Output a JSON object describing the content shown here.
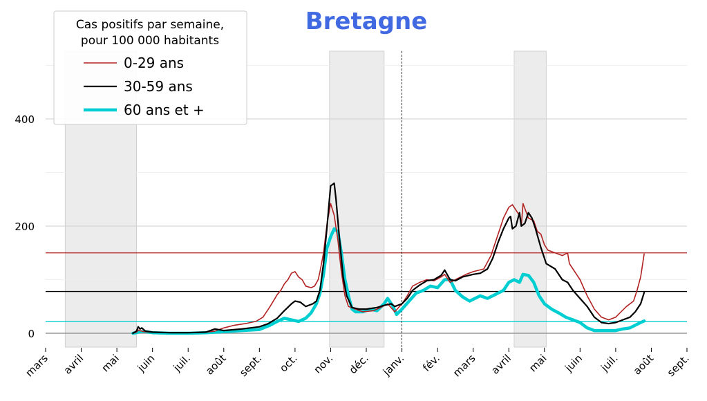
{
  "chart_data": {
    "type": "line",
    "title": "Bretagne",
    "title_color": "#4169E1",
    "legend": {
      "title_lines": [
        "Cas positifs par semaine,",
        "pour 100 000 habitants"
      ],
      "placement": "top-left"
    },
    "x_month_labels": [
      "mars",
      "avril",
      "mai",
      "juin",
      "juil.",
      "août",
      "sept.",
      "oct.",
      "nov.",
      "déc.",
      "janv.",
      "fév.",
      "mars",
      "avril",
      "mai",
      "juin",
      "juil.",
      "août",
      "sept."
    ],
    "x_range_months": [
      0,
      18
    ],
    "y_ticks": [
      0,
      200,
      400
    ],
    "ylim": [
      -25,
      530
    ],
    "grid": "horizontal",
    "year_boundary_month": 10,
    "lockdowns": [
      {
        "start": 0.55,
        "end": 2.55
      },
      {
        "start": 7.97,
        "end": 9.5
      },
      {
        "start": 13.15,
        "end": 14.05
      }
    ],
    "series": [
      {
        "name": "0-29 ans",
        "color": "#B22222",
        "reference_level": 150,
        "points": [
          [
            2.45,
            0
          ],
          [
            2.55,
            2
          ],
          [
            2.6,
            6
          ],
          [
            2.75,
            3
          ],
          [
            3.0,
            2
          ],
          [
            3.5,
            1
          ],
          [
            4.0,
            1
          ],
          [
            4.5,
            2
          ],
          [
            4.75,
            4
          ],
          [
            5.0,
            10
          ],
          [
            5.3,
            15
          ],
          [
            5.6,
            18
          ],
          [
            5.9,
            22
          ],
          [
            6.1,
            30
          ],
          [
            6.3,
            50
          ],
          [
            6.5,
            72
          ],
          [
            6.6,
            80
          ],
          [
            6.7,
            92
          ],
          [
            6.8,
            100
          ],
          [
            6.9,
            112
          ],
          [
            7.0,
            115
          ],
          [
            7.1,
            105
          ],
          [
            7.2,
            100
          ],
          [
            7.3,
            88
          ],
          [
            7.45,
            85
          ],
          [
            7.55,
            88
          ],
          [
            7.65,
            100
          ],
          [
            7.7,
            115
          ],
          [
            7.8,
            150
          ],
          [
            7.9,
            205
          ],
          [
            8.0,
            242
          ],
          [
            8.1,
            220
          ],
          [
            8.2,
            175
          ],
          [
            8.3,
            115
          ],
          [
            8.4,
            70
          ],
          [
            8.5,
            50
          ],
          [
            8.7,
            45
          ],
          [
            8.9,
            40
          ],
          [
            9.2,
            42
          ],
          [
            9.4,
            48
          ],
          [
            9.6,
            55
          ],
          [
            9.8,
            40
          ],
          [
            10.0,
            55
          ],
          [
            10.15,
            70
          ],
          [
            10.3,
            88
          ],
          [
            10.5,
            95
          ],
          [
            10.7,
            100
          ],
          [
            10.9,
            98
          ],
          [
            11.1,
            105
          ],
          [
            11.2,
            110
          ],
          [
            11.35,
            95
          ],
          [
            11.5,
            100
          ],
          [
            11.8,
            110
          ],
          [
            12.0,
            115
          ],
          [
            12.3,
            120
          ],
          [
            12.5,
            145
          ],
          [
            12.7,
            185
          ],
          [
            12.85,
            215
          ],
          [
            13.0,
            235
          ],
          [
            13.1,
            240
          ],
          [
            13.2,
            230
          ],
          [
            13.3,
            220
          ],
          [
            13.35,
            200
          ],
          [
            13.4,
            242
          ],
          [
            13.55,
            215
          ],
          [
            13.7,
            210
          ],
          [
            13.8,
            190
          ],
          [
            13.9,
            185
          ],
          [
            14.0,
            165
          ],
          [
            14.1,
            155
          ],
          [
            14.3,
            150
          ],
          [
            14.5,
            145
          ],
          [
            14.65,
            150
          ],
          [
            14.7,
            130
          ],
          [
            14.8,
            120
          ],
          [
            14.9,
            110
          ],
          [
            15.0,
            100
          ],
          [
            15.2,
            70
          ],
          [
            15.4,
            45
          ],
          [
            15.6,
            30
          ],
          [
            15.8,
            25
          ],
          [
            16.0,
            30
          ],
          [
            16.15,
            40
          ],
          [
            16.3,
            50
          ],
          [
            16.5,
            60
          ],
          [
            16.6,
            80
          ],
          [
            16.7,
            105
          ],
          [
            16.8,
            148
          ]
        ]
      },
      {
        "name": "30-59 ans",
        "color": "#000000",
        "reference_level": 78,
        "points": [
          [
            2.45,
            0
          ],
          [
            2.55,
            4
          ],
          [
            2.6,
            12
          ],
          [
            2.65,
            8
          ],
          [
            2.7,
            10
          ],
          [
            2.8,
            4
          ],
          [
            3.0,
            2
          ],
          [
            3.5,
            1
          ],
          [
            4.0,
            1
          ],
          [
            4.5,
            2
          ],
          [
            4.75,
            8
          ],
          [
            5.0,
            5
          ],
          [
            5.5,
            8
          ],
          [
            6.0,
            12
          ],
          [
            6.25,
            18
          ],
          [
            6.5,
            28
          ],
          [
            6.7,
            42
          ],
          [
            6.9,
            55
          ],
          [
            7.0,
            60
          ],
          [
            7.15,
            58
          ],
          [
            7.3,
            50
          ],
          [
            7.5,
            55
          ],
          [
            7.6,
            60
          ],
          [
            7.7,
            80
          ],
          [
            7.8,
            130
          ],
          [
            7.9,
            200
          ],
          [
            8.0,
            275
          ],
          [
            8.1,
            280
          ],
          [
            8.15,
            250
          ],
          [
            8.25,
            175
          ],
          [
            8.35,
            105
          ],
          [
            8.45,
            70
          ],
          [
            8.6,
            48
          ],
          [
            8.8,
            45
          ],
          [
            9.0,
            45
          ],
          [
            9.3,
            48
          ],
          [
            9.5,
            52
          ],
          [
            9.7,
            55
          ],
          [
            9.8,
            50
          ],
          [
            10.0,
            55
          ],
          [
            10.15,
            65
          ],
          [
            10.3,
            80
          ],
          [
            10.5,
            90
          ],
          [
            10.7,
            98
          ],
          [
            10.9,
            100
          ],
          [
            11.1,
            108
          ],
          [
            11.2,
            118
          ],
          [
            11.35,
            100
          ],
          [
            11.5,
            98
          ],
          [
            11.7,
            105
          ],
          [
            12.0,
            110
          ],
          [
            12.2,
            112
          ],
          [
            12.4,
            120
          ],
          [
            12.55,
            140
          ],
          [
            12.7,
            170
          ],
          [
            12.85,
            195
          ],
          [
            13.0,
            215
          ],
          [
            13.05,
            218
          ],
          [
            13.1,
            195
          ],
          [
            13.2,
            200
          ],
          [
            13.3,
            225
          ],
          [
            13.35,
            200
          ],
          [
            13.45,
            205
          ],
          [
            13.55,
            225
          ],
          [
            13.65,
            215
          ],
          [
            13.75,
            195
          ],
          [
            13.9,
            160
          ],
          [
            14.05,
            130
          ],
          [
            14.3,
            120
          ],
          [
            14.5,
            100
          ],
          [
            14.65,
            95
          ],
          [
            14.8,
            80
          ],
          [
            15.0,
            65
          ],
          [
            15.2,
            50
          ],
          [
            15.4,
            30
          ],
          [
            15.6,
            20
          ],
          [
            15.8,
            18
          ],
          [
            16.0,
            20
          ],
          [
            16.2,
            25
          ],
          [
            16.4,
            30
          ],
          [
            16.55,
            40
          ],
          [
            16.7,
            55
          ],
          [
            16.8,
            76
          ]
        ]
      },
      {
        "name": "60 ans et +",
        "color": "#00CED1",
        "reference_level": 22,
        "points": [
          [
            2.45,
            0
          ],
          [
            2.55,
            1
          ],
          [
            2.65,
            3
          ],
          [
            2.8,
            3
          ],
          [
            3.0,
            1
          ],
          [
            3.5,
            0
          ],
          [
            4.0,
            0
          ],
          [
            4.5,
            1
          ],
          [
            5.0,
            3
          ],
          [
            5.5,
            5
          ],
          [
            6.0,
            7
          ],
          [
            6.3,
            15
          ],
          [
            6.5,
            22
          ],
          [
            6.7,
            28
          ],
          [
            6.9,
            25
          ],
          [
            7.1,
            22
          ],
          [
            7.3,
            28
          ],
          [
            7.45,
            38
          ],
          [
            7.6,
            55
          ],
          [
            7.7,
            75
          ],
          [
            7.8,
            110
          ],
          [
            7.9,
            160
          ],
          [
            8.0,
            180
          ],
          [
            8.1,
            195
          ],
          [
            8.2,
            190
          ],
          [
            8.3,
            150
          ],
          [
            8.4,
            100
          ],
          [
            8.5,
            70
          ],
          [
            8.6,
            45
          ],
          [
            8.7,
            40
          ],
          [
            8.9,
            40
          ],
          [
            9.1,
            45
          ],
          [
            9.3,
            42
          ],
          [
            9.5,
            55
          ],
          [
            9.6,
            65
          ],
          [
            9.75,
            50
          ],
          [
            9.85,
            35
          ],
          [
            10.0,
            45
          ],
          [
            10.2,
            60
          ],
          [
            10.4,
            75
          ],
          [
            10.6,
            80
          ],
          [
            10.8,
            88
          ],
          [
            11.0,
            85
          ],
          [
            11.2,
            100
          ],
          [
            11.35,
            100
          ],
          [
            11.5,
            80
          ],
          [
            11.7,
            68
          ],
          [
            11.9,
            60
          ],
          [
            12.05,
            65
          ],
          [
            12.2,
            70
          ],
          [
            12.4,
            65
          ],
          [
            12.55,
            70
          ],
          [
            12.7,
            75
          ],
          [
            12.85,
            80
          ],
          [
            13.0,
            95
          ],
          [
            13.15,
            100
          ],
          [
            13.3,
            95
          ],
          [
            13.4,
            110
          ],
          [
            13.55,
            108
          ],
          [
            13.7,
            95
          ],
          [
            13.85,
            70
          ],
          [
            14.0,
            55
          ],
          [
            14.2,
            45
          ],
          [
            14.4,
            38
          ],
          [
            14.6,
            30
          ],
          [
            14.8,
            25
          ],
          [
            15.0,
            20
          ],
          [
            15.2,
            10
          ],
          [
            15.4,
            5
          ],
          [
            15.6,
            5
          ],
          [
            15.8,
            5
          ],
          [
            16.0,
            5
          ],
          [
            16.2,
            8
          ],
          [
            16.4,
            10
          ],
          [
            16.55,
            15
          ],
          [
            16.7,
            20
          ],
          [
            16.8,
            23
          ]
        ]
      }
    ]
  }
}
